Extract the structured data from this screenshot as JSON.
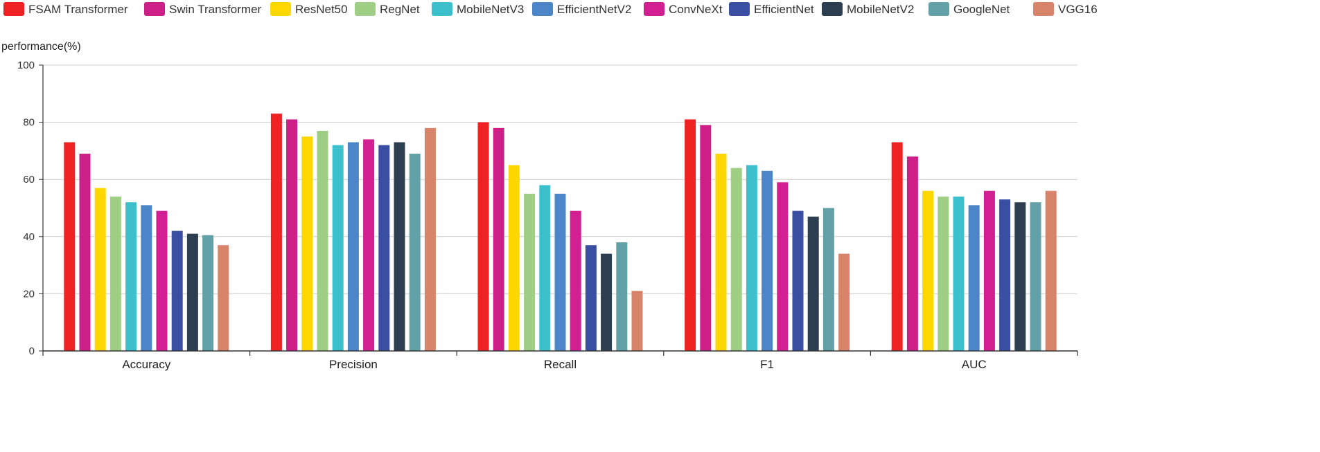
{
  "chart_data": {
    "type": "bar",
    "ylabel": "performance(%)",
    "xlabel": "",
    "ylim": [
      0,
      100
    ],
    "yticks": [
      0,
      20,
      40,
      60,
      80,
      100
    ],
    "grid": true,
    "legend_position": "top",
    "categories": [
      "Accuracy",
      "Precision",
      "Recall",
      "F1",
      "AUC"
    ],
    "series": [
      {
        "name": "FSAM Transformer",
        "color": "#ee2222",
        "values": [
          73,
          83,
          80,
          81,
          73
        ]
      },
      {
        "name": "Swin Transformer",
        "color": "#cc1f87",
        "values": [
          69,
          81,
          78,
          79,
          68
        ]
      },
      {
        "name": "ResNet50",
        "color": "#ffd700",
        "values": [
          57,
          75,
          65,
          69,
          56
        ]
      },
      {
        "name": "RegNet",
        "color": "#9ecf85",
        "values": [
          54,
          77,
          55,
          64,
          54
        ]
      },
      {
        "name": "MobileNetV3",
        "color": "#3cc1cc",
        "values": [
          52,
          72,
          58,
          65,
          54
        ]
      },
      {
        "name": "EfficientNetV2",
        "color": "#4d86c8",
        "values": [
          51,
          73,
          55,
          63,
          51
        ]
      },
      {
        "name": "ConvNeXt",
        "color": "#d21f91",
        "values": [
          49,
          74,
          49,
          59,
          56
        ]
      },
      {
        "name": "EfficientNet",
        "color": "#3a4fa3",
        "values": [
          42,
          72,
          37,
          49,
          53
        ]
      },
      {
        "name": "MobileNetV2",
        "color": "#2c3e50",
        "values": [
          41,
          73,
          34,
          47,
          52
        ]
      },
      {
        "name": "GoogleNet",
        "color": "#63a1a8",
        "values": [
          40.5,
          69,
          38,
          50,
          52
        ]
      },
      {
        "name": "VGG16",
        "color": "#d8846a",
        "values": [
          37,
          78,
          21,
          34,
          56
        ]
      }
    ]
  }
}
